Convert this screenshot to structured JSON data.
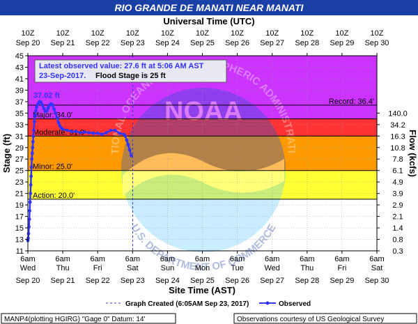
{
  "chart_data": {
    "type": "line",
    "title": "RIO GRANDE DE MANATI NEAR MANATI",
    "top_axis_label": "Universal Time (UTC)",
    "xlabel": "Site Time (AST)",
    "ylabel_left": "Stage (ft)",
    "ylabel_right": "Flow (kcfs)",
    "ylim": [
      11,
      45
    ],
    "xlim": [
      "2017-09-20 06:00 AST",
      "2017-09-30 06:00 AST"
    ],
    "left_ticks": [
      "11",
      "13",
      "15",
      "17",
      "19",
      "21",
      "23",
      "25",
      "27",
      "29",
      "31",
      "33",
      "35",
      "37",
      "39",
      "41",
      "43",
      "45"
    ],
    "right_ticks": [
      {
        "stage": 11,
        "label": "0.3"
      },
      {
        "stage": 13,
        "label": "0.8"
      },
      {
        "stage": 15,
        "label": "1.4"
      },
      {
        "stage": 17,
        "label": "2.1"
      },
      {
        "stage": 19,
        "label": "2.9"
      },
      {
        "stage": 21,
        "label": "3.9"
      },
      {
        "stage": 23,
        "label": "4.9"
      },
      {
        "stage": 25,
        "label": "6.1"
      },
      {
        "stage": 27,
        "label": "7.8"
      },
      {
        "stage": 29,
        "label": "10.8"
      },
      {
        "stage": 31,
        "label": "16.3"
      },
      {
        "stage": 33,
        "label": "34.2"
      },
      {
        "stage": 35,
        "label": "140.0"
      }
    ],
    "bottom_ticks": [
      {
        "time": "6am",
        "day": "Wed",
        "date": "Sep 20"
      },
      {
        "time": "6am",
        "day": "Thu",
        "date": "Sep 21"
      },
      {
        "time": "6am",
        "day": "Fri",
        "date": "Sep 22"
      },
      {
        "time": "6am",
        "day": "Sat",
        "date": "Sep 23"
      },
      {
        "time": "6am",
        "day": "Sun",
        "date": "Sep 24"
      },
      {
        "time": "6am",
        "day": "Mon",
        "date": "Sep 25"
      },
      {
        "time": "6am",
        "day": "Tue",
        "date": "Sep 26"
      },
      {
        "time": "6am",
        "day": "Wed",
        "date": "Sep 27"
      },
      {
        "time": "6am",
        "day": "Thu",
        "date": "Sep 28"
      },
      {
        "time": "6am",
        "day": "Fri",
        "date": "Sep 29"
      },
      {
        "time": "6am",
        "day": "Sat",
        "date": "Sep 30"
      }
    ],
    "top_ticks": [
      {
        "time": "10Z",
        "date": "Sep 20"
      },
      {
        "time": "10Z",
        "date": "Sep 21"
      },
      {
        "time": "10Z",
        "date": "Sep 22"
      },
      {
        "time": "10Z",
        "date": "Sep 23"
      },
      {
        "time": "10Z",
        "date": "Sep 24"
      },
      {
        "time": "10Z",
        "date": "Sep 25"
      },
      {
        "time": "10Z",
        "date": "Sep 26"
      },
      {
        "time": "10Z",
        "date": "Sep 27"
      },
      {
        "time": "10Z",
        "date": "Sep 28"
      },
      {
        "time": "10Z",
        "date": "Sep 29"
      },
      {
        "time": "10Z",
        "date": "Sep 30"
      }
    ],
    "bands": [
      {
        "from": 11,
        "to": 20,
        "color": "#ffffff"
      },
      {
        "from": 20,
        "to": 25,
        "color": "#ffff33"
      },
      {
        "from": 25,
        "to": 31,
        "color": "#ff9900"
      },
      {
        "from": 31,
        "to": 34,
        "color": "#ff3333"
      },
      {
        "from": 34,
        "to": 45,
        "color": "#cc33ff"
      }
    ],
    "thresholds": [
      {
        "label": "Action: 20.0'",
        "value": 20,
        "side": "left"
      },
      {
        "label": "Minor: 25.0'",
        "value": 25,
        "side": "left"
      },
      {
        "label": "Moderate: 31.0'",
        "value": 31,
        "side": "left"
      },
      {
        "label": "Major: 34.0'",
        "value": 34,
        "side": "left"
      },
      {
        "label": "Record: 36.4'",
        "value": 36.4,
        "side": "right"
      }
    ],
    "peak_label": "37.02 ft",
    "peak_value": 37.02,
    "latest_box": {
      "line1": "Latest observed value: 27.6 ft at 5:06 AM AST",
      "line2_date": "23-Sep-2017.",
      "line2_rest": "Flood Stage is 25 ft"
    },
    "graph_created_date": "2017-09-23 06:05",
    "series": [
      {
        "name": "Observed",
        "color": "#3333ff",
        "points": [
          [
            "2017-09-20 06:00",
            12.8
          ],
          [
            "2017-09-20 06:15",
            13.2
          ],
          [
            "2017-09-20 06:30",
            14.0
          ],
          [
            "2017-09-20 06:45",
            15.2
          ],
          [
            "2017-09-20 07:00",
            16.5
          ],
          [
            "2017-09-20 07:15",
            18.0
          ],
          [
            "2017-09-20 07:30",
            19.5
          ],
          [
            "2017-09-20 07:45",
            21.0
          ],
          [
            "2017-09-20 08:00",
            22.5
          ],
          [
            "2017-09-20 08:15",
            24.0
          ],
          [
            "2017-09-20 08:30",
            25.6
          ],
          [
            "2017-09-20 08:45",
            27.0
          ],
          [
            "2017-09-20 09:00",
            28.0
          ],
          [
            "2017-09-20 09:15",
            29.0
          ],
          [
            "2017-09-20 09:30",
            30.0
          ],
          [
            "2017-09-20 09:45",
            31.0
          ],
          [
            "2017-09-20 10:00",
            32.0
          ],
          [
            "2017-09-20 10:30",
            33.5
          ],
          [
            "2017-09-20 11:00",
            34.6
          ],
          [
            "2017-09-20 11:30",
            35.4
          ],
          [
            "2017-09-20 12:00",
            36.0
          ],
          [
            "2017-09-20 13:00",
            36.6
          ],
          [
            "2017-09-20 14:00",
            37.0
          ],
          [
            "2017-09-20 15:00",
            36.9
          ],
          [
            "2017-09-20 16:00",
            36.4
          ],
          [
            "2017-09-20 17:00",
            35.8
          ],
          [
            "2017-09-20 18:00",
            35.3
          ],
          [
            "2017-09-20 19:00",
            35.4
          ],
          [
            "2017-09-20 20:00",
            35.9
          ],
          [
            "2017-09-20 21:00",
            36.4
          ],
          [
            "2017-09-20 22:00",
            36.6
          ],
          [
            "2017-09-20 23:00",
            36.4
          ],
          [
            "2017-09-21 00:00",
            35.7
          ],
          [
            "2017-09-21 01:00",
            35.0
          ],
          [
            "2017-09-21 02:00",
            34.2
          ],
          [
            "2017-09-21 03:00",
            33.4
          ],
          [
            "2017-09-21 04:00",
            32.8
          ],
          [
            "2017-09-21 05:00",
            32.4
          ],
          [
            "2017-09-21 06:00",
            32.2
          ],
          [
            "2017-09-21 09:00",
            32.0
          ],
          [
            "2017-09-21 12:00",
            31.8
          ],
          [
            "2017-09-21 15:00",
            31.8
          ],
          [
            "2017-09-21 18:00",
            31.6
          ],
          [
            "2017-09-21 21:00",
            31.7
          ],
          [
            "2017-09-22 00:00",
            31.6
          ],
          [
            "2017-09-22 03:00",
            31.5
          ],
          [
            "2017-09-22 06:00",
            31.5
          ],
          [
            "2017-09-22 09:00",
            31.3
          ],
          [
            "2017-09-22 12:00",
            31.6
          ],
          [
            "2017-09-22 15:00",
            32.0
          ],
          [
            "2017-09-22 18:00",
            32.0
          ],
          [
            "2017-09-22 21:00",
            31.5
          ],
          [
            "2017-09-23 00:00",
            31.3
          ],
          [
            "2017-09-23 01:00",
            31.0
          ],
          [
            "2017-09-23 02:00",
            30.3
          ],
          [
            "2017-09-23 03:00",
            29.5
          ],
          [
            "2017-09-23 04:00",
            28.6
          ],
          [
            "2017-09-23 05:06",
            27.6
          ]
        ]
      }
    ],
    "legend_graph_created": "Graph Created (6:05AM Sep 23, 2017)",
    "legend_observed": "Observed",
    "footer_left": "MANP4(plotting HGIRG) \"Gage 0\" Datum: 14'",
    "footer_right": "Observations courtesy of US Geological Survey",
    "watermark_top": "NATIONAL OCEANIC AND ATMOSPHERIC ADMINISTRATION",
    "watermark_center": "NOAA",
    "watermark_bottom": "U.S. DEPARTMENT OF COMMERCE"
  }
}
